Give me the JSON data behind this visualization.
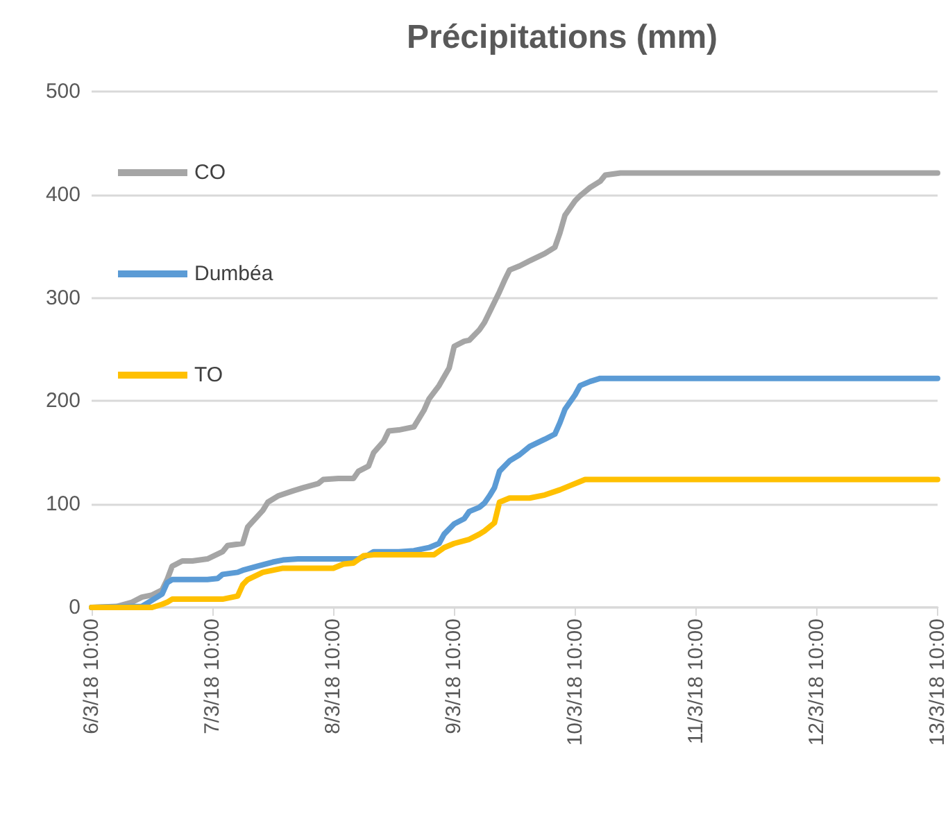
{
  "chart_data": {
    "type": "line",
    "title": "Précipitations (mm)",
    "xlim": [
      "--03-06T10:00",
      "--03-13T10:00"
    ],
    "xticks": [
      {
        "value": "--03-06T10:00",
        "label": "6/3/18 10:00"
      },
      {
        "value": "--03-07T10:00",
        "label": "7/3/18 10:00"
      },
      {
        "value": "--03-08T10:00",
        "label": "8/3/18 10:00"
      },
      {
        "value": "--03-09T10:00",
        "label": "9/3/18 10:00"
      },
      {
        "value": "--03-10T10:00",
        "label": "10/3/18 10:00"
      },
      {
        "value": "--03-11T10:00",
        "label": "11/3/18 10:00"
      },
      {
        "value": "--03-12T10:00",
        "label": "12/3/18 10:00"
      },
      {
        "value": "--03-13T10:00",
        "label": "13/3/18 10:00"
      }
    ],
    "ylim": [
      0,
      500
    ],
    "yticks": [
      0,
      100,
      200,
      300,
      400,
      500
    ],
    "grid": "y",
    "legend": "top left",
    "marker": "none",
    "line_style": "solid",
    "series": [
      {
        "name": "CO",
        "color": "#a5a5a5",
        "x": [
          "--03-06T10:00",
          "--03-06T15:00",
          "--03-06T18:00",
          "--03-06T20:00",
          "--03-06T22:00",
          "--03-07T00:00",
          "--03-07T01:00",
          "--03-07T02:00",
          "--03-07T04:00",
          "--03-07T06:00",
          "--03-07T09:00",
          "--03-07T12:00",
          "--03-07T13:00",
          "--03-07T16:00",
          "--03-07T17:00",
          "--03-07T20:00",
          "--03-07T21:00",
          "--03-07T23:00",
          "--03-08T02:00",
          "--03-08T04:00",
          "--03-08T07:00",
          "--03-08T08:00",
          "--03-08T11:00",
          "--03-08T14:00",
          "--03-08T15:00",
          "--03-08T17:00",
          "--03-08T18:00",
          "--03-08T20:00",
          "--03-08T21:00",
          "--03-08T23:00",
          "--03-09T02:00",
          "--03-09T04:00",
          "--03-09T05:00",
          "--03-09T07:00",
          "--03-09T09:00",
          "--03-09T10:00",
          "--03-09T12:00",
          "--03-09T13:00",
          "--03-09T15:00",
          "--03-09T16:00",
          "--03-09T17:00",
          "--03-09T19:00",
          "--03-09T20:00",
          "--03-09T21:00",
          "--03-09T23:00",
          "--03-10T01:00",
          "--03-10T04:00",
          "--03-10T06:00",
          "--03-10T07:00",
          "--03-10T08:00",
          "--03-10T10:00",
          "--03-10T11:00",
          "--03-10T13:00",
          "--03-10T15:00",
          "--03-10T16:00",
          "--03-10T19:00",
          "--03-13T10:00"
        ],
        "values": [
          0,
          1,
          5,
          10,
          12,
          17,
          27,
          40,
          45,
          45,
          47,
          54,
          60,
          62,
          78,
          94,
          102,
          108,
          113,
          116,
          120,
          124,
          125,
          125,
          132,
          137,
          150,
          161,
          171,
          172,
          175,
          191,
          202,
          215,
          232,
          253,
          258,
          259,
          269,
          276,
          286,
          306,
          317,
          327,
          331,
          336,
          343,
          349,
          363,
          380,
          394,
          399,
          407,
          413,
          419,
          421,
          421
        ]
      },
      {
        "name": "Dumbéa",
        "color": "#5b9bd5",
        "x": [
          "--03-06T10:00",
          "--03-06T20:00",
          "--03-06T22:00",
          "--03-07T00:00",
          "--03-07T01:00",
          "--03-07T02:00",
          "--03-07T09:00",
          "--03-07T11:00",
          "--03-07T12:00",
          "--03-07T15:00",
          "--03-07T16:00",
          "--03-07T19:00",
          "--03-07T22:00",
          "--03-08T00:00",
          "--03-08T03:00",
          "--03-08T15:00",
          "--03-08T17:00",
          "--03-08T18:00",
          "--03-08T23:00",
          "--03-09T02:00",
          "--03-09T05:00",
          "--03-09T07:00",
          "--03-09T08:00",
          "--03-09T10:00",
          "--03-09T12:00",
          "--03-09T13:00",
          "--03-09T15:00",
          "--03-09T16:00",
          "--03-09T17:00",
          "--03-09T18:00",
          "--03-09T19:00",
          "--03-09T21:00",
          "--03-09T23:00",
          "--03-10T01:00",
          "--03-10T04:00",
          "--03-10T06:00",
          "--03-10T07:00",
          "--03-10T08:00",
          "--03-10T10:00",
          "--03-10T11:00",
          "--03-10T13:00",
          "--03-10T15:00",
          "--03-13T10:00"
        ],
        "values": [
          0,
          1,
          7,
          13,
          24,
          27,
          27,
          28,
          32,
          34,
          36,
          40,
          44,
          46,
          47,
          47,
          51,
          54,
          54,
          55,
          58,
          62,
          71,
          81,
          86,
          93,
          97,
          101,
          108,
          116,
          132,
          142,
          148,
          156,
          163,
          168,
          179,
          192,
          206,
          215,
          219,
          222,
          222
        ]
      },
      {
        "name": "TO",
        "color": "#ffc000",
        "x": [
          "--03-06T10:00",
          "--03-06T22:00",
          "--03-07T00:00",
          "--03-07T01:00",
          "--03-07T02:00",
          "--03-07T12:00",
          "--03-07T15:00",
          "--03-07T16:00",
          "--03-07T17:00",
          "--03-07T20:00",
          "--03-07T22:00",
          "--03-08T00:00",
          "--03-08T10:00",
          "--03-08T12:00",
          "--03-08T14:00",
          "--03-08T16:00",
          "--03-08T18:00",
          "--03-09T06:00",
          "--03-09T08:00",
          "--03-09T10:00",
          "--03-09T13:00",
          "--03-09T15:00",
          "--03-09T16:00",
          "--03-09T18:00",
          "--03-09T19:00",
          "--03-09T21:00",
          "--03-10T01:00",
          "--03-10T04:00",
          "--03-10T07:00",
          "--03-10T09:00",
          "--03-10T11:00",
          "--03-10T12:00",
          "--03-13T10:00"
        ],
        "values": [
          0,
          0,
          3,
          5,
          8,
          8,
          11,
          22,
          27,
          34,
          36,
          38,
          38,
          42,
          43,
          50,
          51,
          51,
          58,
          62,
          66,
          71,
          74,
          82,
          102,
          106,
          106,
          109,
          114,
          118,
          122,
          124,
          124
        ]
      }
    ]
  }
}
